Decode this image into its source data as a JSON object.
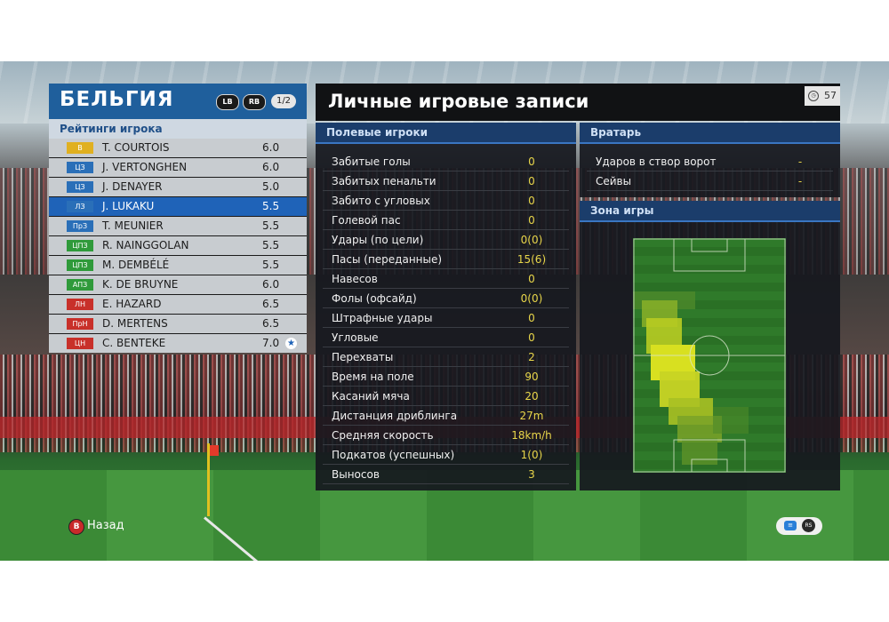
{
  "team": {
    "name": "БЕЛЬГИЯ",
    "lb": "LB",
    "rb": "RB",
    "page": "1/2",
    "ratings_title": "Рейтинги игрока",
    "players": [
      {
        "pos": "В",
        "name": "T. COURTOIS",
        "rating": "6.0",
        "color": "#e0b020",
        "selected": false
      },
      {
        "pos": "ЦЗ",
        "name": "J. VERTONGHEN",
        "rating": "6.0",
        "color": "#2a6fb8",
        "selected": false
      },
      {
        "pos": "ЦЗ",
        "name": "J. DENAYER",
        "rating": "5.0",
        "color": "#2a6fb8",
        "selected": false
      },
      {
        "pos": "ЛЗ",
        "name": "J. LUKAKU",
        "rating": "5.5",
        "color": "#2a6fb8",
        "selected": true
      },
      {
        "pos": "ПрЗ",
        "name": "T. MEUNIER",
        "rating": "5.5",
        "color": "#2a6fb8",
        "selected": false
      },
      {
        "pos": "ЦПЗ",
        "name": "R. NAINGGOLAN",
        "rating": "5.5",
        "color": "#2f9a3a",
        "selected": false
      },
      {
        "pos": "ЦПЗ",
        "name": "M. DEMBÉLÉ",
        "rating": "5.5",
        "color": "#2f9a3a",
        "selected": false
      },
      {
        "pos": "АПЗ",
        "name": "K. DE BRUYNE",
        "rating": "6.0",
        "color": "#2f9a3a",
        "selected": false
      },
      {
        "pos": "ЛН",
        "name": "E. HAZARD",
        "rating": "6.5",
        "color": "#c8302a",
        "selected": false
      },
      {
        "pos": "ПрН",
        "name": "D. MERTENS",
        "rating": "6.5",
        "color": "#c8302a",
        "selected": false
      },
      {
        "pos": "ЦН",
        "name": "C. BENTEKE",
        "rating": "7.0",
        "color": "#c8302a",
        "selected": false,
        "star": "★"
      }
    ]
  },
  "records": {
    "title": "Личные игровые записи",
    "timer": "57",
    "field_players": {
      "title": "Полевые игроки",
      "stats": [
        {
          "label": "Забитые голы",
          "value": "0"
        },
        {
          "label": "Забитых пенальти",
          "value": "0"
        },
        {
          "label": "Забито с угловых",
          "value": "0"
        },
        {
          "label": "Голевой пас",
          "value": "0"
        },
        {
          "label": "Удары (по цели)",
          "value": "0(0)"
        },
        {
          "label": "Пасы (переданные)",
          "value": "15(6)"
        },
        {
          "label": "Навесов",
          "value": "0"
        },
        {
          "label": "Фолы (офсайд)",
          "value": "0(0)"
        },
        {
          "label": "Штрафные удары",
          "value": "0"
        },
        {
          "label": "Угловые",
          "value": "0"
        },
        {
          "label": "Перехваты",
          "value": "2"
        },
        {
          "label": "Время на поле",
          "value": "90"
        },
        {
          "label": "Касаний мяча",
          "value": "20"
        },
        {
          "label": "Дистанция дриблинга",
          "value": "27m"
        },
        {
          "label": "Средняя скорость",
          "value": "18km/h"
        },
        {
          "label": "Подкатов (успешных)",
          "value": "1(0)"
        },
        {
          "label": "Выносов",
          "value": "3"
        }
      ]
    },
    "goalkeeper": {
      "title": "Вратарь",
      "stats": [
        {
          "label": "Ударов в створ ворот",
          "value": "-"
        },
        {
          "label": "Сейвы",
          "value": "-"
        }
      ]
    },
    "zone": {
      "title": "Зона игры"
    }
  },
  "footer": {
    "back_button": "B",
    "back_label": "Назад"
  }
}
